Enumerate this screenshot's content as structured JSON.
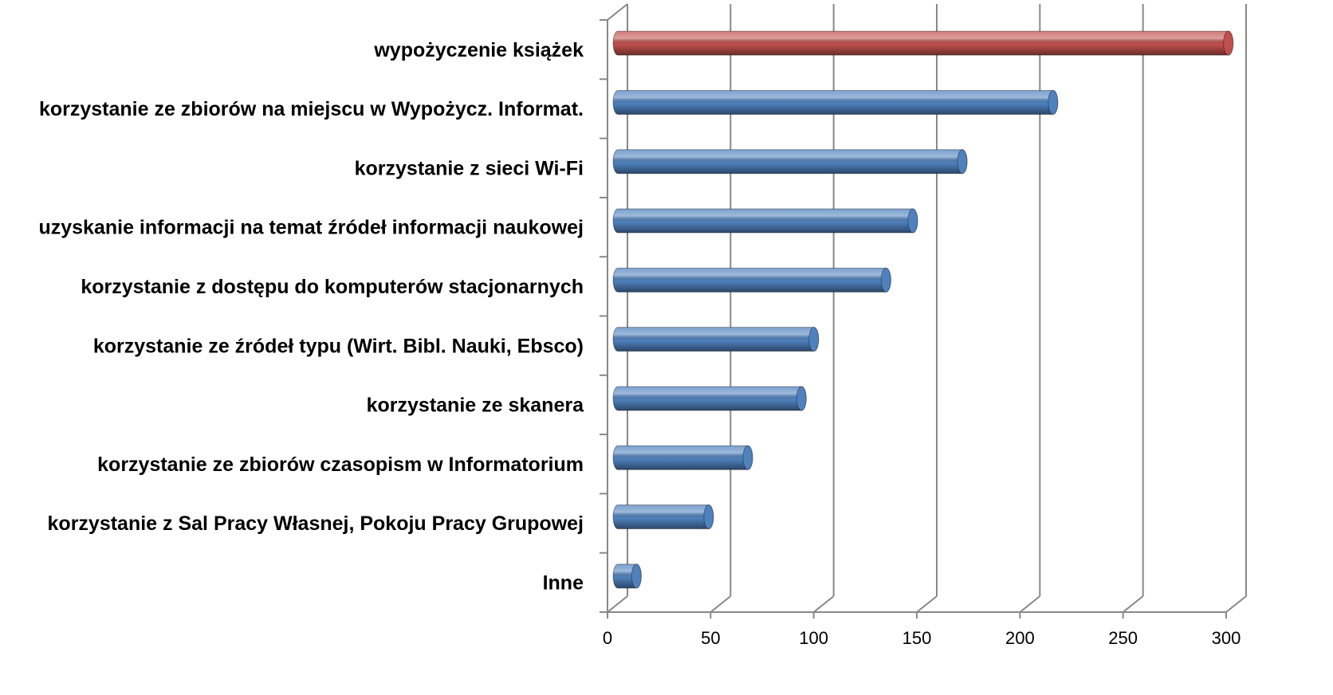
{
  "chart_data": {
    "type": "bar3d_horizontal",
    "categories": [
      "wypożyczenie książek",
      "korzystanie ze zbiorów na miejscu w Wypożycz.  Informat.",
      "korzystanie z sieci Wi-Fi",
      "uzyskanie informacji na temat źródeł informacji naukowej",
      "korzystanie z dostępu do komputerów stacjonarnych",
      "korzystanie ze źródeł typu (Wirt. Bibl. Nauki, Ebsco) ",
      "korzystanie ze skanera",
      "korzystanie ze zbiorów czasopism w Informatorium",
      "korzystanie z Sal Pracy Własnej, Pokoju Pracy Grupowej",
      "Inne"
    ],
    "values": [
      296,
      211,
      167,
      143,
      130,
      95,
      89,
      63,
      44,
      9
    ],
    "colors": [
      "#c0504d",
      "#4f81bd",
      "#4f81bd",
      "#4f81bd",
      "#4f81bd",
      "#4f81bd",
      "#4f81bd",
      "#4f81bd",
      "#4f81bd",
      "#4f81bd"
    ],
    "xlim": [
      0,
      300
    ],
    "xticks": [
      0,
      50,
      100,
      150,
      200,
      250,
      300
    ],
    "grid": true
  }
}
